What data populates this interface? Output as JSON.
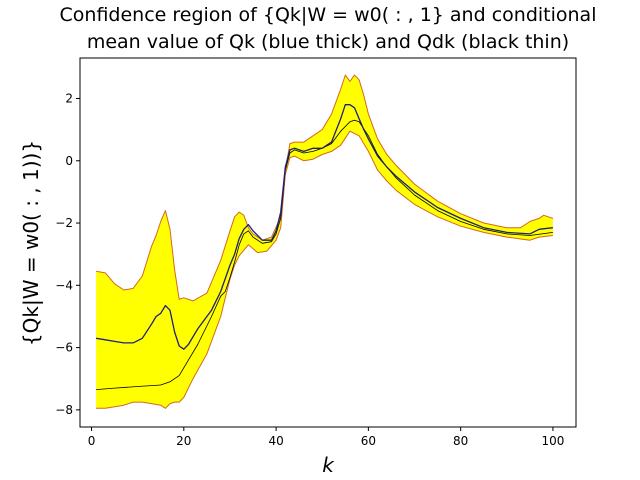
{
  "chart_data": {
    "type": "area",
    "title_line1": "Confidence region of {Qk|W = w0( : , 1} and conditional",
    "title_line2": "mean value of Qk (blue thick) and Qdk (black thin)",
    "xlabel": "k",
    "ylabel": "{Qk|W = w0( : , 1))}",
    "xlim": [
      -2.5,
      105
    ],
    "ylim": [
      -8.55,
      3.3
    ],
    "x_ticks": [
      0,
      20,
      40,
      60,
      80,
      100
    ],
    "y_ticks": [
      -8,
      -6,
      -4,
      -2,
      0,
      2
    ],
    "grid": false,
    "colors": {
      "band_fill": "#ffff00",
      "band_edge": "#d2691e",
      "blue_line": "#1f1f7a",
      "black_line": "#000000"
    },
    "series": [
      {
        "name": "upper bound",
        "x": [
          1,
          3,
          5,
          7,
          9,
          11,
          13,
          14,
          15,
          16,
          17,
          18,
          19,
          20,
          22,
          25,
          28,
          30,
          31,
          32,
          33,
          34,
          35,
          37,
          39,
          41,
          42,
          43,
          44,
          46,
          48,
          50,
          52,
          54,
          55,
          56,
          57,
          58,
          59,
          60,
          62,
          64,
          66,
          70,
          75,
          80,
          85,
          90,
          93,
          95,
          97,
          98,
          99,
          100
        ],
        "values": [
          -3.55,
          -3.6,
          -3.95,
          -4.15,
          -4.1,
          -3.7,
          -2.75,
          -2.4,
          -1.95,
          -1.6,
          -2.2,
          -3.5,
          -4.45,
          -4.4,
          -4.5,
          -4.25,
          -3.2,
          -2.25,
          -1.8,
          -1.65,
          -1.75,
          -2.15,
          -2.35,
          -2.55,
          -2.45,
          -1.8,
          -0.3,
          0.55,
          0.6,
          0.6,
          0.8,
          1.0,
          1.5,
          2.3,
          2.75,
          2.55,
          2.75,
          2.6,
          2.1,
          1.5,
          0.7,
          0.2,
          -0.15,
          -0.75,
          -1.3,
          -1.7,
          -2.0,
          -2.15,
          -2.15,
          -1.95,
          -1.85,
          -1.75,
          -1.8,
          -1.85
        ]
      },
      {
        "name": "lower bound",
        "x": [
          1,
          3,
          5,
          7,
          9,
          11,
          13,
          15,
          16,
          17,
          18,
          19,
          20,
          22,
          25,
          28,
          29,
          30,
          31,
          32,
          34,
          36,
          38,
          40,
          41,
          42,
          43,
          44,
          46,
          48,
          50,
          52,
          54,
          56,
          58,
          60,
          62,
          64,
          66,
          70,
          75,
          80,
          85,
          90,
          95,
          97,
          100
        ],
        "values": [
          -7.95,
          -7.95,
          -7.9,
          -7.85,
          -7.75,
          -7.75,
          -7.8,
          -7.85,
          -7.95,
          -7.8,
          -7.75,
          -7.75,
          -7.6,
          -7.0,
          -6.2,
          -5.0,
          -4.4,
          -3.8,
          -3.35,
          -3.05,
          -2.7,
          -2.95,
          -2.9,
          -2.55,
          -2.15,
          -0.45,
          0.1,
          0.15,
          0.0,
          0.05,
          0.2,
          0.3,
          0.5,
          0.95,
          0.8,
          0.3,
          -0.3,
          -0.65,
          -0.95,
          -1.4,
          -1.8,
          -2.1,
          -2.3,
          -2.45,
          -2.55,
          -2.45,
          -2.4
        ]
      },
      {
        "name": "Qk mean (blue thick)",
        "x": [
          1,
          3,
          5,
          7,
          9,
          11,
          13,
          14,
          15,
          16,
          17,
          18,
          19,
          20,
          21,
          23,
          26,
          28,
          30,
          31,
          32,
          33,
          34,
          35,
          37,
          39,
          40,
          41,
          42,
          43,
          44,
          46,
          48,
          50,
          52,
          54,
          55,
          56,
          57,
          58,
          59,
          60,
          62,
          64,
          66,
          70,
          75,
          80,
          85,
          90,
          95,
          97,
          100
        ],
        "values": [
          -5.7,
          -5.75,
          -5.8,
          -5.85,
          -5.85,
          -5.7,
          -5.25,
          -5.0,
          -4.9,
          -4.65,
          -4.8,
          -5.5,
          -5.95,
          -6.05,
          -5.9,
          -5.4,
          -4.8,
          -4.2,
          -3.35,
          -3.0,
          -2.5,
          -2.2,
          -2.05,
          -2.25,
          -2.55,
          -2.55,
          -2.25,
          -1.65,
          -0.2,
          0.35,
          0.4,
          0.3,
          0.4,
          0.4,
          0.6,
          1.35,
          1.8,
          1.8,
          1.7,
          1.35,
          1.0,
          0.7,
          0.15,
          -0.2,
          -0.5,
          -1.0,
          -1.5,
          -1.85,
          -2.15,
          -2.3,
          -2.35,
          -2.2,
          -2.15
        ]
      },
      {
        "name": "Qdk mean (black thin)",
        "x": [
          1,
          5,
          10,
          15,
          17,
          19,
          21,
          23,
          26,
          28,
          29,
          30,
          31,
          32,
          33,
          34,
          35,
          37,
          39,
          40,
          41,
          42,
          43,
          44,
          46,
          48,
          50,
          52,
          54,
          56,
          57,
          58,
          60,
          62,
          64,
          66,
          70,
          75,
          80,
          85,
          90,
          95,
          100
        ],
        "values": [
          -7.35,
          -7.3,
          -7.25,
          -7.2,
          -7.1,
          -6.9,
          -6.4,
          -5.9,
          -5.0,
          -4.35,
          -4.2,
          -3.75,
          -3.25,
          -2.7,
          -2.35,
          -2.25,
          -2.45,
          -2.65,
          -2.6,
          -2.35,
          -1.85,
          -0.3,
          0.25,
          0.35,
          0.25,
          0.3,
          0.4,
          0.55,
          0.95,
          1.25,
          1.3,
          1.25,
          0.8,
          0.2,
          -0.2,
          -0.55,
          -1.1,
          -1.6,
          -1.95,
          -2.2,
          -2.35,
          -2.4,
          -2.3
        ]
      }
    ]
  }
}
